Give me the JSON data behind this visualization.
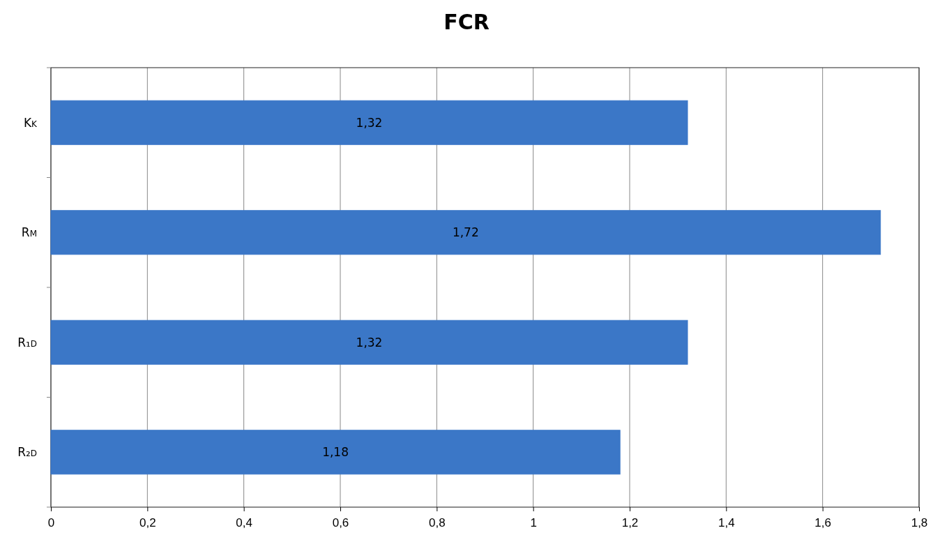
{
  "chart_data": {
    "type": "bar",
    "orientation": "horizontal",
    "title": "FCR",
    "categories": [
      "Kk",
      "Rm",
      "R₁d",
      "R₂d"
    ],
    "values": [
      1.32,
      1.72,
      1.32,
      1.18
    ],
    "value_labels": [
      "1,32",
      "1,72",
      "1,32",
      "1,18"
    ],
    "color": "#3b77c7",
    "xlim": [
      0,
      1.8
    ],
    "xticks": [
      0,
      {
        "value": 0.2,
        "label": "0,2"
      },
      {
        "value": 0.4,
        "label": "0,4"
      },
      {
        "value": 0.6,
        "label": "0,6"
      },
      {
        "value": 0.8,
        "label": "0,8"
      },
      1,
      {
        "value": 1.2,
        "label": "1,2"
      },
      {
        "value": 1.4,
        "label": "1,4"
      },
      {
        "value": 1.6,
        "label": "1,6"
      },
      {
        "value": 1.8,
        "label": "1,8"
      }
    ],
    "grid": "x"
  }
}
